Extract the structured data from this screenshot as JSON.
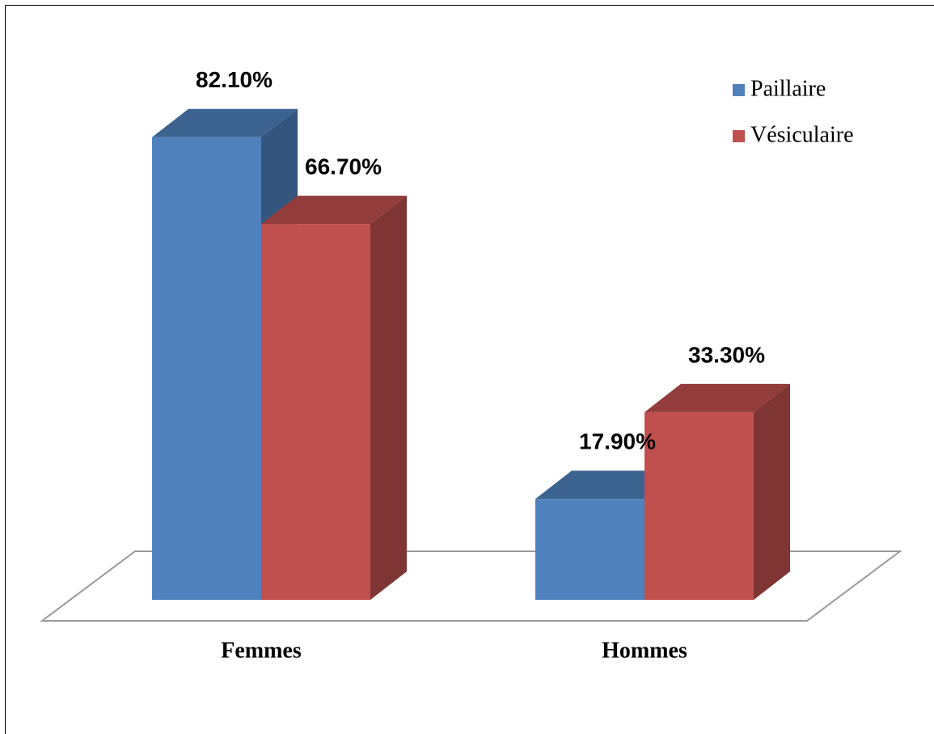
{
  "chart_data": {
    "type": "bar3d",
    "categories": [
      "Femmes",
      "Hommes"
    ],
    "series": [
      {
        "name": "Paillaire",
        "color": "#4f81bd",
        "values": [
          82.1,
          17.9
        ],
        "value_labels": [
          "82.10%",
          "17.90%"
        ]
      },
      {
        "name": "Vésiculaire",
        "color": "#c0504d",
        "values": [
          66.7,
          33.3
        ],
        "value_labels": [
          "66.70%",
          "33.30%"
        ]
      }
    ],
    "legend": "top-right"
  }
}
